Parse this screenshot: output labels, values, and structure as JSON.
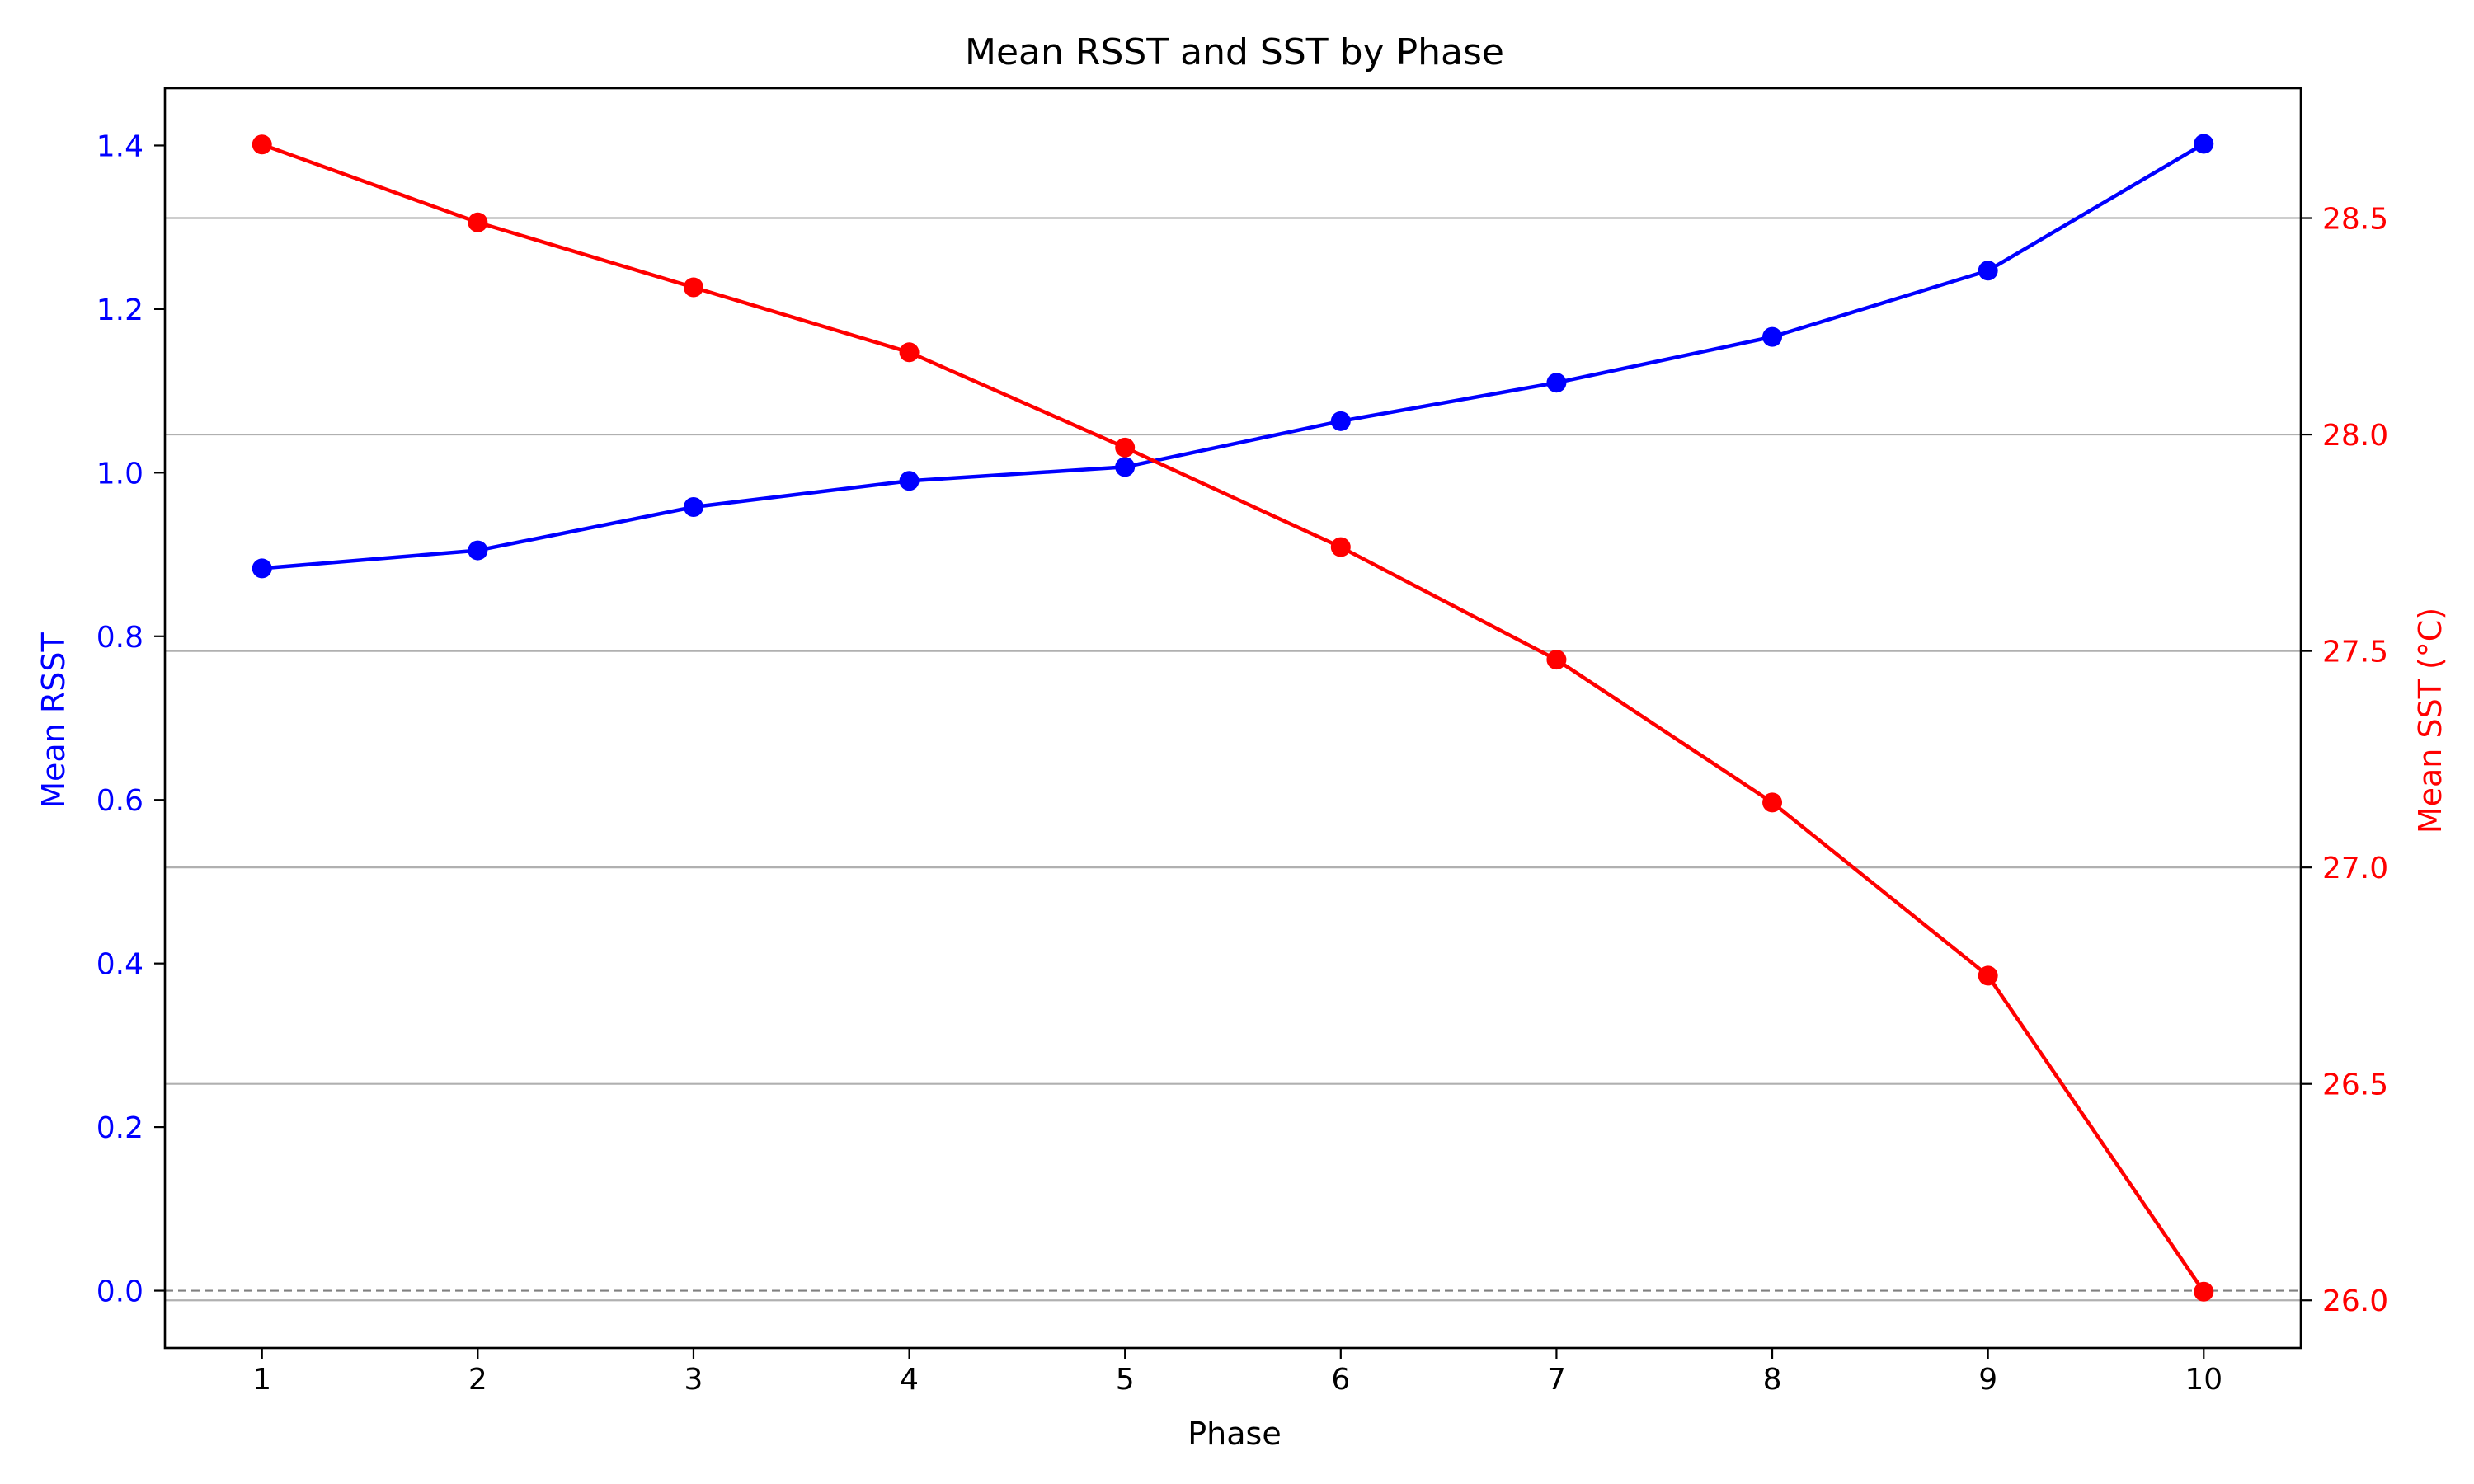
{
  "chart_data": {
    "type": "line",
    "title": "Mean RSST and SST by Phase",
    "xlabel": "Phase",
    "x": [
      1,
      2,
      3,
      4,
      5,
      6,
      7,
      8,
      9,
      10
    ],
    "xlim": [
      0.55,
      10.45
    ],
    "grid": "horizontal (right axis)",
    "reference_line": {
      "axis": "left",
      "y": 0,
      "style": "dashed"
    },
    "axes": {
      "left": {
        "label": "Mean RSST",
        "color": "#0000ff",
        "ylim": [
          -0.07,
          1.47
        ],
        "ticks": [
          0.0,
          0.2,
          0.4,
          0.6,
          0.8,
          1.0,
          1.2,
          1.4
        ]
      },
      "right": {
        "label": "Mean SST (°C)",
        "color": "#ff0000",
        "ylim": [
          25.89,
          28.8
        ],
        "ticks": [
          26.0,
          26.5,
          27.0,
          27.5,
          28.0,
          28.5
        ]
      }
    },
    "series": [
      {
        "axis": "left",
        "color": "#0000ff",
        "marker": "circle",
        "values": [
          0.883,
          0.905,
          0.958,
          0.99,
          1.007,
          1.063,
          1.11,
          1.166,
          1.247,
          1.402
        ]
      },
      {
        "axis": "right",
        "color": "#ff0000",
        "marker": "circle",
        "values": [
          28.67,
          28.49,
          28.34,
          28.19,
          27.97,
          27.74,
          27.48,
          27.15,
          26.75,
          26.02
        ]
      }
    ]
  }
}
